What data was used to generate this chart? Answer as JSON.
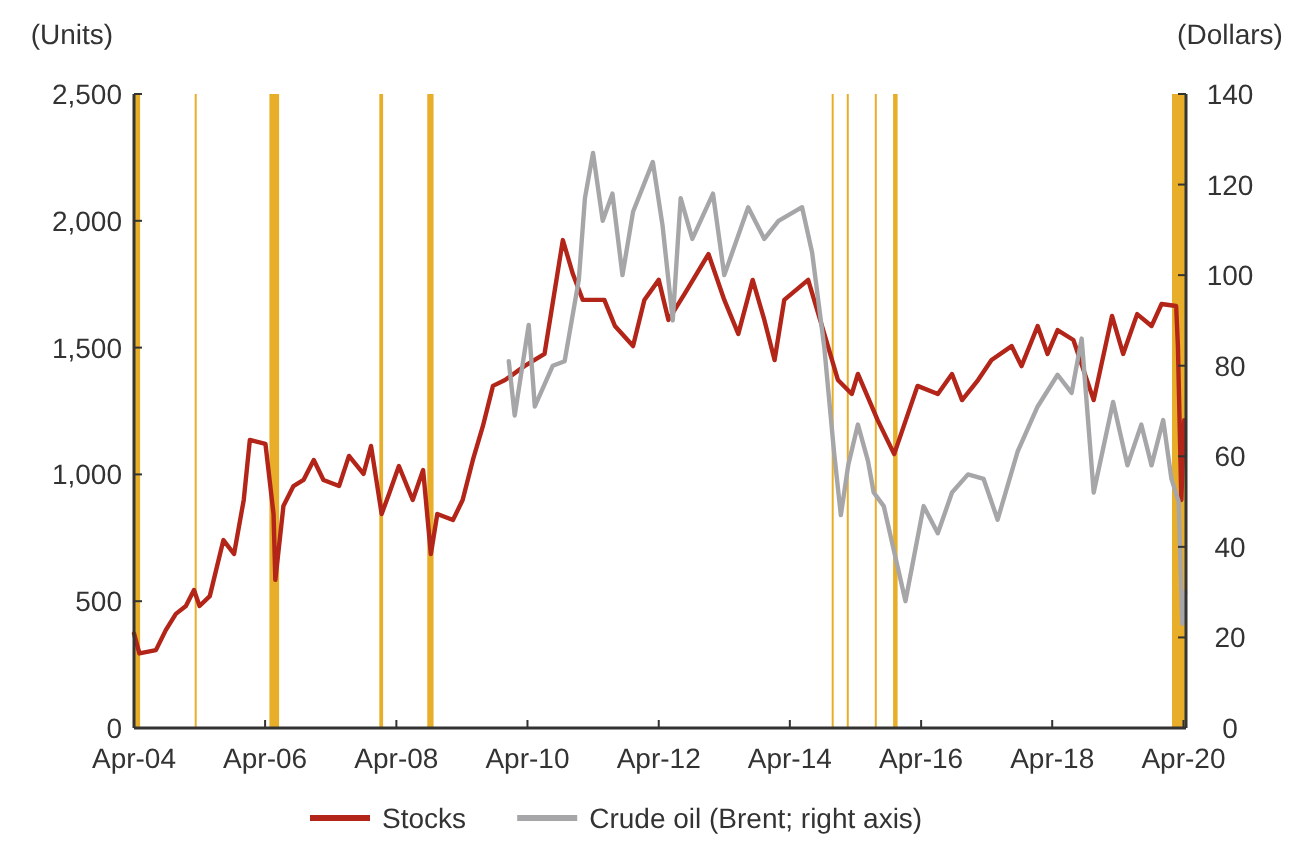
{
  "chart_data": {
    "type": "line",
    "ylabel": "(Units)",
    "y2label": "(Dollars)",
    "xlim": [
      "2004-04-01",
      "2020-04-15"
    ],
    "xticks": [
      {
        "value": "2004-04-01",
        "label": "Apr-04"
      },
      {
        "value": "2006-04-01",
        "label": "Apr-06"
      },
      {
        "value": "2008-04-01",
        "label": "Apr-08"
      },
      {
        "value": "2010-04-01",
        "label": "Apr-10"
      },
      {
        "value": "2012-04-01",
        "label": "Apr-12"
      },
      {
        "value": "2014-04-01",
        "label": "Apr-14"
      },
      {
        "value": "2016-04-01",
        "label": "Apr-16"
      },
      {
        "value": "2018-04-01",
        "label": "Apr-18"
      },
      {
        "value": "2020-04-01",
        "label": "Apr-20"
      }
    ],
    "ylim": [
      0,
      2500
    ],
    "yticks": [
      {
        "value": 0,
        "label": "0"
      },
      {
        "value": 500,
        "label": "500"
      },
      {
        "value": 1000,
        "label": "1,000"
      },
      {
        "value": 1500,
        "label": "1,500"
      },
      {
        "value": 2000,
        "label": "2,000"
      },
      {
        "value": 2500,
        "label": "2,500"
      }
    ],
    "y2lim": [
      0,
      140
    ],
    "y2ticks": [
      0,
      20,
      40,
      60,
      80,
      100,
      120,
      140
    ],
    "legend": "bottom",
    "grid": false,
    "bands": [
      {
        "axis": "x",
        "from": "2004-04-01",
        "to": "2004-05-05",
        "color": "#e8ae2a"
      },
      {
        "axis": "x",
        "from": "2005-03-05",
        "to": "2005-03-12",
        "color": "#e8ae2a"
      },
      {
        "axis": "x",
        "from": "2006-04-25",
        "to": "2006-06-18",
        "color": "#e8ae2a"
      },
      {
        "axis": "x",
        "from": "2007-12-28",
        "to": "2008-01-18",
        "color": "#e8ae2a"
      },
      {
        "axis": "x",
        "from": "2008-09-20",
        "to": "2008-10-25",
        "color": "#e8ae2a"
      },
      {
        "axis": "x",
        "from": "2014-11-20",
        "to": "2014-11-27",
        "color": "#e8ae2a"
      },
      {
        "axis": "x",
        "from": "2015-02-12",
        "to": "2015-02-19",
        "color": "#e8ae2a"
      },
      {
        "axis": "x",
        "from": "2015-07-18",
        "to": "2015-07-25",
        "color": "#e8ae2a"
      },
      {
        "axis": "x",
        "from": "2015-10-28",
        "to": "2015-11-22",
        "color": "#e8ae2a"
      },
      {
        "axis": "x",
        "from": "2020-01-28",
        "to": "2020-04-15",
        "color": "#e8ae2a"
      }
    ],
    "series": [
      {
        "name": "Stocks",
        "color": "#b22518",
        "x": [
          "2004-04-01",
          "2004-05-01",
          "2004-08-01",
          "2004-09-25",
          "2004-11-20",
          "2005-01-15",
          "2005-03-01",
          "2005-04-01",
          "2005-05-28",
          "2005-08-12",
          "2005-10-10",
          "2005-12-03",
          "2006-01-06",
          "2006-04-03",
          "2006-05-18",
          "2006-05-28",
          "2006-07-12",
          "2006-09-06",
          "2006-11-01",
          "2006-12-28",
          "2007-02-20",
          "2007-05-18",
          "2007-07-12",
          "2007-10-01",
          "2007-11-12",
          "2008-01-10",
          "2008-02-20",
          "2008-04-15",
          "2008-07-01",
          "2008-08-28",
          "2008-10-10",
          "2008-11-15",
          "2009-02-10",
          "2009-04-05",
          "2009-06-01",
          "2009-07-27",
          "2009-09-21",
          "2009-11-27",
          "2010-03-15",
          "2010-07-05",
          "2010-10-15",
          "2010-12-10",
          "2011-02-03",
          "2011-06-03",
          "2011-08-01",
          "2011-11-10",
          "2012-01-12",
          "2012-04-01",
          "2012-05-25",
          "2012-08-22",
          "2013-01-03",
          "2013-04-01",
          "2013-06-18",
          "2013-09-06",
          "2013-11-10",
          "2014-01-06",
          "2014-03-01",
          "2014-07-12",
          "2014-10-10",
          "2014-12-25",
          "2015-03-12",
          "2015-04-15",
          "2015-08-03",
          "2015-11-03",
          "2016-03-12",
          "2016-07-03",
          "2016-09-20",
          "2016-11-15",
          "2017-02-12",
          "2017-04-28",
          "2017-08-18",
          "2017-10-12",
          "2018-01-10",
          "2018-03-06",
          "2018-05-01",
          "2018-07-28",
          "2018-11-18",
          "2019-02-28",
          "2019-05-01",
          "2019-07-18",
          "2019-10-06",
          "2019-12-01",
          "2020-02-20",
          "2020-03-01",
          "2020-03-20",
          "2020-04-05"
        ],
        "values": [
          373,
          294,
          307,
          386,
          450,
          481,
          544,
          481,
          520,
          741,
          686,
          899,
          1136,
          1120,
          844,
          584,
          875,
          954,
          978,
          1057,
          978,
          954,
          1073,
          1002,
          1112,
          844,
          923,
          1033,
          899,
          1017,
          686,
          844,
          820,
          899,
          1057,
          1191,
          1349,
          1372,
          1427,
          1475,
          1924,
          1790,
          1688,
          1688,
          1585,
          1506,
          1688,
          1767,
          1609,
          1711,
          1869,
          1688,
          1554,
          1767,
          1609,
          1451,
          1688,
          1767,
          1554,
          1372,
          1317,
          1396,
          1214,
          1080,
          1349,
          1317,
          1396,
          1293,
          1372,
          1451,
          1506,
          1427,
          1585,
          1475,
          1569,
          1530,
          1293,
          1625,
          1475,
          1632,
          1585,
          1672,
          1664,
          1506,
          899,
          1214
        ]
      },
      {
        "name": "Crude oil (Brent; right axis)",
        "color": "#a6a6a8",
        "axis": "y2",
        "x": [
          "2009-12-18",
          "2010-01-20",
          "2010-04-08",
          "2010-05-12",
          "2010-08-20",
          "2010-10-25",
          "2011-01-12",
          "2011-02-15",
          "2011-04-01",
          "2011-05-25",
          "2011-07-18",
          "2011-09-12",
          "2011-11-10",
          "2012-02-28",
          "2012-04-22",
          "2012-06-18",
          "2012-08-01",
          "2012-10-05",
          "2013-01-28",
          "2013-04-01",
          "2013-08-12",
          "2013-11-10",
          "2014-01-28",
          "2014-06-08",
          "2014-08-03",
          "2014-10-10",
          "2014-12-03",
          "2015-01-10",
          "2015-02-20",
          "2015-04-15",
          "2015-06-10",
          "2015-07-12",
          "2015-09-06",
          "2016-01-05",
          "2016-04-15",
          "2016-07-03",
          "2016-09-20",
          "2016-12-18",
          "2017-03-15",
          "2017-06-01",
          "2017-09-20",
          "2018-01-10",
          "2018-05-01",
          "2018-07-18",
          "2018-09-12",
          "2018-11-18",
          "2019-03-06",
          "2019-05-25",
          "2019-08-10",
          "2019-10-06",
          "2019-12-10",
          "2020-01-25",
          "2020-03-05",
          "2020-03-25",
          "2020-04-10"
        ],
        "values": [
          81,
          69,
          89,
          71,
          80,
          81,
          99,
          117,
          127,
          112,
          118,
          100,
          114,
          125,
          111,
          90,
          117,
          108,
          118,
          100,
          115,
          108,
          112,
          115,
          105,
          84,
          61,
          47,
          58,
          67,
          59,
          52,
          49,
          28,
          49,
          43,
          52,
          56,
          55,
          46,
          61,
          71,
          78,
          74,
          86,
          52,
          72,
          58,
          67,
          58,
          68,
          55,
          50,
          23,
          30
        ]
      }
    ]
  }
}
